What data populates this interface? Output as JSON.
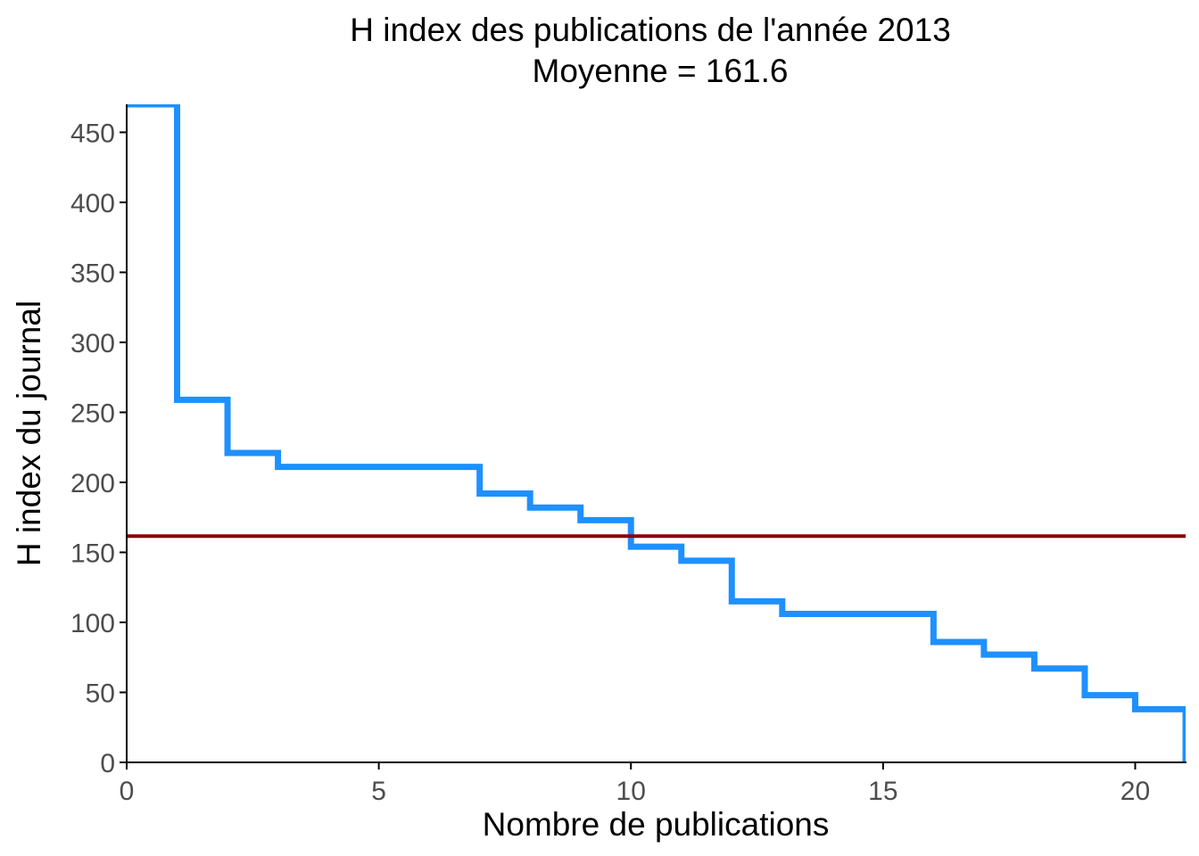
{
  "chart_data": {
    "type": "line",
    "subtype": "step",
    "title": "H index des publications de l'année 2013",
    "subtitle": "Moyenne = 161.6",
    "xlabel": "Nombre de publications",
    "ylabel": "H index du journal",
    "xlim": [
      0,
      21
    ],
    "ylim": [
      0,
      470
    ],
    "x_ticks": [
      0,
      5,
      10,
      15,
      20
    ],
    "y_ticks": [
      0,
      50,
      100,
      150,
      200,
      250,
      300,
      350,
      400,
      450
    ],
    "grid": false,
    "legend": "none",
    "series": [
      {
        "x": [
          0,
          1,
          2,
          3,
          4,
          5,
          6,
          7,
          8,
          9,
          10,
          11,
          12,
          13,
          14,
          15,
          16,
          17,
          18,
          19,
          20
        ],
        "values": [
          470,
          259,
          221,
          211,
          211,
          211,
          211,
          192,
          182,
          173,
          154,
          144,
          115,
          106,
          106,
          106,
          86,
          77,
          67,
          48,
          38
        ]
      }
    ],
    "hline": {
      "y": 161.6
    },
    "colors": {
      "series": "#1e90ff",
      "mean_line": "#8b0000",
      "axis": "#000000",
      "tick_label": "#4d4d4d"
    }
  }
}
